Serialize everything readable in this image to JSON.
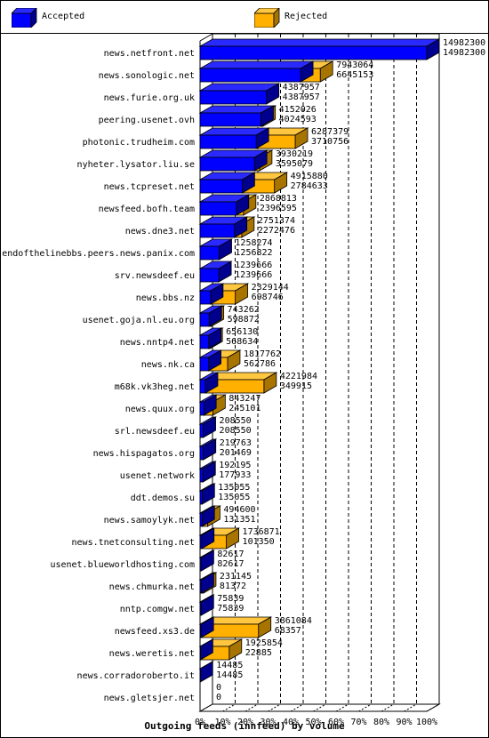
{
  "legend": {
    "accepted_label": "Accepted",
    "rejected_label": "Rejected"
  },
  "colors": {
    "accepted": "#0000ff",
    "accepted_dark": "#00008c",
    "accepted_light": "#2a2aff",
    "rejected": "#ffb000",
    "rejected_dark": "#a87400",
    "rejected_light": "#ffc640"
  },
  "chart_data": {
    "type": "bar",
    "orientation": "horizontal",
    "title": "Outgoing feeds (innfeed) by volume",
    "xlim": [
      0,
      100
    ],
    "x_ticks": [
      "0%",
      "10%",
      "20%",
      "30%",
      "40%",
      "50%",
      "60%",
      "70%",
      "80%",
      "90%",
      "100%"
    ],
    "grid": true,
    "categories": [
      "news.netfront.net",
      "news.sonologic.net",
      "news.furie.org.uk",
      "peering.usenet.ovh",
      "photonic.trudheim.com",
      "nyheter.lysator.liu.se",
      "news.tcpreset.net",
      "newsfeed.bofh.team",
      "news.dne3.net",
      "endofthelinebbs.peers.news.panix.com",
      "srv.newsdeef.eu",
      "news.bbs.nz",
      "usenet.goja.nl.eu.org",
      "news.nntp4.net",
      "news.nk.ca",
      "m68k.vk3heg.net",
      "news.quux.org",
      "srl.newsdeef.eu",
      "news.hispagatos.org",
      "usenet.network",
      "ddt.demos.su",
      "news.samoylyk.net",
      "news.tnetconsulting.net",
      "usenet.blueworldhosting.com",
      "news.chmurka.net",
      "nntp.comgw.net",
      "newsfeed.xs3.de",
      "news.weretis.net",
      "news.corradoroberto.it",
      "news.gletsjer.net"
    ],
    "series": [
      {
        "name": "Accepted",
        "values": [
          14982300,
          6645153,
          4387957,
          4024593,
          3710756,
          3595079,
          2784633,
          2396595,
          2272476,
          1256822,
          1239666,
          698746,
          598872,
          568634,
          562786,
          349915,
          245101,
          208550,
          201469,
          177933,
          135055,
          131351,
          101350,
          82617,
          81372,
          75839,
          68357,
          22885,
          14485,
          0
        ]
      },
      {
        "name": "Rejected",
        "values": [
          14982300,
          7943064,
          4387957,
          4152026,
          6287379,
          3930219,
          4915880,
          2868813,
          2751374,
          1258274,
          1239666,
          2329144,
          743262,
          656130,
          1817762,
          4221984,
          843247,
          208550,
          219763,
          192195,
          135055,
          494600,
          1736871,
          82617,
          231145,
          75839,
          3861084,
          1925854,
          14485,
          0
        ]
      }
    ],
    "value_labels": {
      "top": [
        "14982300",
        "7943064",
        "4387957",
        "4152026",
        "6287379",
        "3930219",
        "4915880",
        "2868813",
        "2751374",
        "1258274",
        "1239666",
        "2329144",
        "743262",
        "656130",
        "1817762",
        "4221984",
        "843247",
        "208550",
        "219763",
        "192195",
        "135055",
        "494600",
        "1736871",
        "82617",
        "231145",
        "75839",
        "3861084",
        "1925854",
        "14485",
        "0"
      ],
      "bottom": [
        "14982300",
        "6645153",
        "4387957",
        "4024593",
        "3710756",
        "3595079",
        "2784633",
        "2396595",
        "2272476",
        "1256822",
        "1239666",
        "698746",
        "598872",
        "568634",
        "562786",
        "349915",
        "245101",
        "208550",
        "201469",
        "177933",
        "135055",
        "131351",
        "101350",
        "82617",
        "81372",
        "75839",
        "68357",
        "22885",
        "14485",
        "0"
      ]
    }
  }
}
